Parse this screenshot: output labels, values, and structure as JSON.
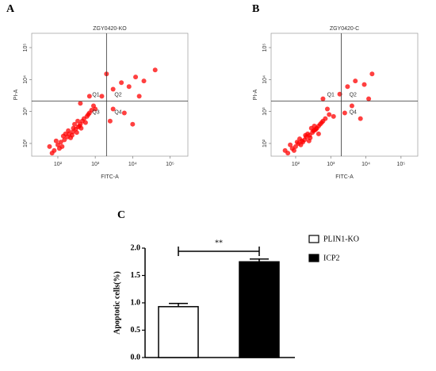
{
  "chart_data": [
    {
      "type": "scatter",
      "panel": "A",
      "title": "ZGY0420-KO",
      "x_label": "FITC-A",
      "y_label": "PI-A",
      "color": "#ff0000",
      "log_x": true,
      "log_y": true,
      "xlim": [
        20,
        300000
      ],
      "ylim": [
        40,
        280000
      ],
      "xticks": [
        {
          "value": 100,
          "label": "10²"
        },
        {
          "value": 1000,
          "label": "10³"
        },
        {
          "value": 10000,
          "label": "10⁴"
        },
        {
          "value": 100000,
          "label": "10⁵"
        }
      ],
      "yticks": [
        {
          "value": 100,
          "label": "10²"
        },
        {
          "value": 1000,
          "label": "10³"
        },
        {
          "value": 10000,
          "label": "10⁴"
        },
        {
          "value": 100000,
          "label": "10⁵"
        }
      ],
      "gates": {
        "x": 2000,
        "y": 2100
      },
      "annotations": [
        "Q1",
        "Q2",
        "Q3",
        "Q4"
      ],
      "x": [
        80,
        100,
        120,
        150,
        180,
        200,
        250,
        300,
        350,
        400,
        450,
        500,
        600,
        700,
        90,
        130,
        160,
        220,
        260,
        320,
        380,
        420,
        60,
        70,
        110,
        140,
        190,
        240,
        280,
        340,
        550,
        650,
        800,
        900,
        1000,
        1500,
        3000,
        5000,
        8000,
        12000,
        20000,
        3000,
        6000,
        10000,
        2500,
        700,
        400,
        15000,
        2000,
        40000
      ],
      "y": [
        60,
        90,
        110,
        130,
        160,
        200,
        230,
        280,
        330,
        400,
        500,
        600,
        700,
        900,
        120,
        80,
        200,
        150,
        300,
        220,
        350,
        300,
        80,
        50,
        70,
        170,
        250,
        180,
        400,
        500,
        450,
        800,
        1100,
        1500,
        1200,
        3000,
        5000,
        8000,
        6000,
        12000,
        9000,
        1200,
        900,
        400,
        500,
        3000,
        1800,
        3000,
        15000,
        20000
      ]
    },
    {
      "type": "scatter",
      "panel": "B",
      "title": "ZGY0420-C",
      "x_label": "FITC-A",
      "y_label": "PI-A",
      "color": "#ff0000",
      "log_x": true,
      "log_y": true,
      "xlim": [
        20,
        300000
      ],
      "ylim": [
        40,
        280000
      ],
      "xticks": [
        {
          "value": 100,
          "label": "10²"
        },
        {
          "value": 1000,
          "label": "10³"
        },
        {
          "value": 10000,
          "label": "10⁴"
        },
        {
          "value": 100000,
          "label": "10⁵"
        }
      ],
      "yticks": [
        {
          "value": 100,
          "label": "10²"
        },
        {
          "value": 1000,
          "label": "10³"
        },
        {
          "value": 10000,
          "label": "10⁴"
        },
        {
          "value": 100000,
          "label": "10⁵"
        }
      ],
      "gates": {
        "x": 2000,
        "y": 2100
      },
      "annotations": [
        "Q1",
        "Q2",
        "Q4"
      ],
      "x": [
        60,
        80,
        100,
        120,
        150,
        180,
        200,
        250,
        300,
        350,
        400,
        450,
        500,
        600,
        70,
        90,
        130,
        160,
        220,
        260,
        320,
        380,
        50,
        110,
        140,
        190,
        240,
        280,
        340,
        450,
        550,
        700,
        900,
        1200,
        1800,
        3000,
        5000,
        9000,
        15000,
        4000,
        7000,
        2500,
        12000,
        600,
        800
      ],
      "y": [
        50,
        70,
        80,
        100,
        120,
        130,
        160,
        180,
        220,
        260,
        300,
        350,
        400,
        500,
        90,
        60,
        140,
        110,
        200,
        150,
        250,
        280,
        60,
        110,
        90,
        180,
        120,
        300,
        350,
        200,
        450,
        600,
        800,
        700,
        3500,
        6000,
        9000,
        7000,
        15000,
        1500,
        600,
        900,
        2500,
        2500,
        1200
      ]
    },
    {
      "type": "bar",
      "panel": "C",
      "y_label": "Apoptotic cells(%)",
      "ylim": [
        0,
        2
      ],
      "yticks": [
        {
          "value": 0,
          "label": "0.0"
        },
        {
          "value": 0.5,
          "label": "0.5"
        },
        {
          "value": 1,
          "label": "1.0"
        },
        {
          "value": 1.5,
          "label": "1.5"
        },
        {
          "value": 2,
          "label": "2.0"
        }
      ],
      "significance": "**",
      "series": [
        {
          "name": "PLIN1-KO",
          "color": "#ffffff",
          "values": [
            0.93
          ],
          "errors": [
            0.06
          ]
        },
        {
          "name": "ICP2",
          "color": "#000000",
          "values": [
            1.75
          ],
          "errors": [
            0.05
          ]
        }
      ]
    }
  ]
}
